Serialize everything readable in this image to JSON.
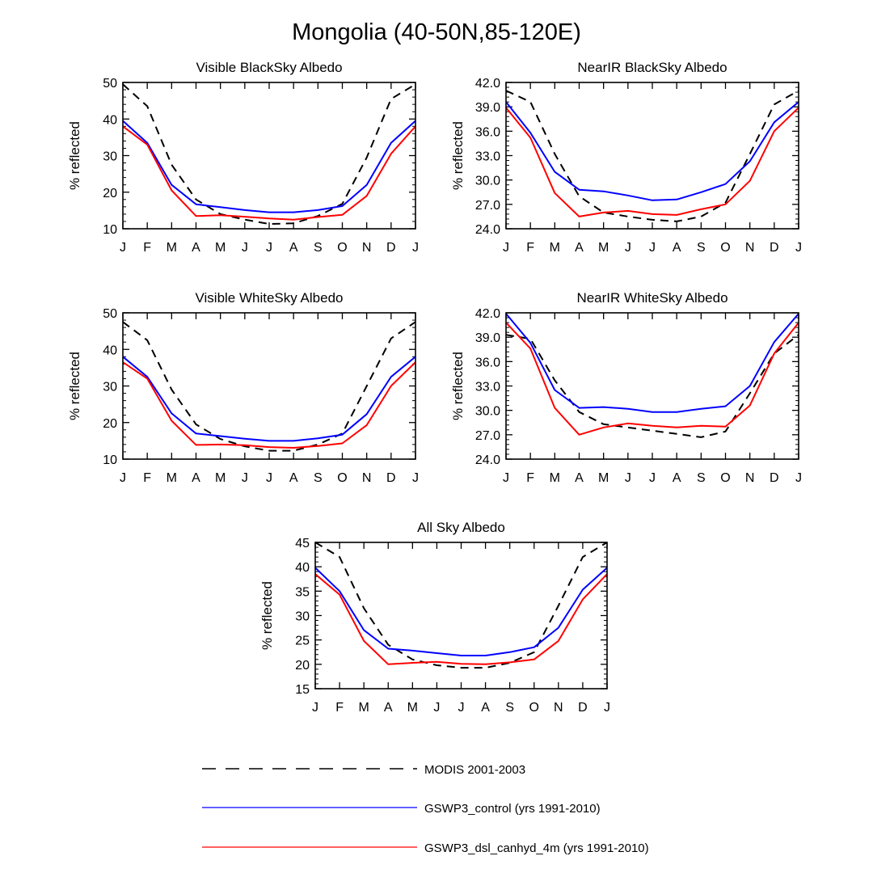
{
  "title": "Mongolia (40-50N,85-120E)",
  "colors": {
    "modis": "#000000",
    "control": "#0000ff",
    "canhyd": "#ff0000"
  },
  "legend": [
    {
      "label": "MODIS 2001-2003",
      "color": "#000000",
      "style": "dashed"
    },
    {
      "label": "GSWP3_control (yrs 1991-2010)",
      "color": "#0000ff",
      "style": "solid"
    },
    {
      "label": "GSWP3_dsl_canhyd_4m (yrs 1991-2010)",
      "color": "#ff0000",
      "style": "solid"
    }
  ],
  "chart_data": [
    {
      "type": "line",
      "title": "Visible BlackSky Albedo",
      "ylabel": "% reflected",
      "xlabel": "",
      "categories": [
        "J",
        "F",
        "M",
        "A",
        "M",
        "J",
        "J",
        "A",
        "S",
        "O",
        "N",
        "D",
        "J"
      ],
      "ylim": [
        10,
        50
      ],
      "yticks": [
        "10",
        "20",
        "30",
        "40",
        "50"
      ],
      "series": [
        {
          "name": "MODIS 2001-2003",
          "values": [
            49.5,
            43.5,
            27.5,
            18.0,
            14.0,
            12.5,
            11.3,
            11.5,
            13.5,
            16.8,
            29.5,
            45.5,
            49.5
          ]
        },
        {
          "name": "GSWP3_control (yrs 1991-2010)",
          "values": [
            39.5,
            33.5,
            22.0,
            16.7,
            15.9,
            15.1,
            14.5,
            14.5,
            15.1,
            16.2,
            22.0,
            33.5,
            39.5
          ]
        },
        {
          "name": "GSWP3_dsl_canhyd_4m (yrs 1991-2010)",
          "values": [
            38.0,
            33.0,
            20.5,
            13.5,
            13.7,
            13.3,
            12.8,
            12.5,
            13.2,
            13.8,
            19.0,
            30.5,
            38.0
          ]
        }
      ]
    },
    {
      "type": "line",
      "title": "NearIR BlackSky Albedo",
      "ylabel": "% reflected",
      "xlabel": "",
      "categories": [
        "J",
        "F",
        "M",
        "A",
        "M",
        "J",
        "J",
        "A",
        "S",
        "O",
        "N",
        "D",
        "J"
      ],
      "ylim": [
        24,
        42
      ],
      "yticks": [
        "24.0",
        "27.0",
        "30.0",
        "33.0",
        "36.0",
        "39.0",
        "42.0"
      ],
      "series": [
        {
          "name": "MODIS 2001-2003",
          "values": [
            41.0,
            39.6,
            33.2,
            28.0,
            26.0,
            25.5,
            25.1,
            24.9,
            25.5,
            27.2,
            33.2,
            39.3,
            41.0
          ]
        },
        {
          "name": "GSWP3_control (yrs 1991-2010)",
          "values": [
            39.6,
            35.8,
            31.0,
            28.8,
            28.6,
            28.1,
            27.5,
            27.6,
            28.5,
            29.5,
            32.3,
            37.1,
            39.6
          ]
        },
        {
          "name": "GSWP3_dsl_canhyd_4m (yrs 1991-2010)",
          "values": [
            38.9,
            35.2,
            28.4,
            25.5,
            26.0,
            26.2,
            25.8,
            25.7,
            26.4,
            27.0,
            29.9,
            36.0,
            38.9
          ]
        }
      ]
    },
    {
      "type": "line",
      "title": "Visible WhiteSky Albedo",
      "ylabel": "% reflected",
      "xlabel": "",
      "categories": [
        "J",
        "F",
        "M",
        "A",
        "M",
        "J",
        "J",
        "A",
        "S",
        "O",
        "N",
        "D",
        "J"
      ],
      "ylim": [
        10,
        50
      ],
      "yticks": [
        "10",
        "20",
        "30",
        "40",
        "50"
      ],
      "series": [
        {
          "name": "MODIS 2001-2003",
          "values": [
            47.5,
            42.5,
            29.0,
            19.5,
            15.5,
            13.5,
            12.3,
            12.3,
            14.0,
            17.0,
            30.0,
            43.0,
            47.5
          ]
        },
        {
          "name": "GSWP3_control (yrs 1991-2010)",
          "values": [
            38.0,
            32.5,
            22.5,
            17.0,
            16.3,
            15.6,
            15.0,
            15.0,
            15.7,
            16.7,
            22.3,
            32.5,
            38.0
          ]
        },
        {
          "name": "GSWP3_dsl_canhyd_4m (yrs 1991-2010)",
          "values": [
            36.5,
            32.0,
            20.5,
            13.9,
            14.0,
            13.8,
            13.3,
            13.1,
            13.6,
            14.3,
            19.3,
            30.0,
            36.5
          ]
        }
      ]
    },
    {
      "type": "line",
      "title": "NearIR WhiteSky Albedo",
      "ylabel": "% reflected",
      "xlabel": "",
      "categories": [
        "J",
        "F",
        "M",
        "A",
        "M",
        "J",
        "J",
        "A",
        "S",
        "O",
        "N",
        "D",
        "J"
      ],
      "ylim": [
        24,
        42
      ],
      "yticks": [
        "24.0",
        "27.0",
        "30.0",
        "33.0",
        "36.0",
        "39.0",
        "42.0"
      ],
      "series": [
        {
          "name": "MODIS 2001-2003",
          "values": [
            39.3,
            38.8,
            33.7,
            29.8,
            28.3,
            27.9,
            27.5,
            27.1,
            26.7,
            27.4,
            32.1,
            37.0,
            39.3
          ]
        },
        {
          "name": "GSWP3_control (yrs 1991-2010)",
          "values": [
            41.9,
            38.3,
            32.5,
            30.3,
            30.4,
            30.2,
            29.8,
            29.8,
            30.2,
            30.5,
            33.0,
            38.4,
            41.9
          ]
        },
        {
          "name": "GSWP3_dsl_canhyd_4m (yrs 1991-2010)",
          "values": [
            40.8,
            37.6,
            30.3,
            27.0,
            27.9,
            28.4,
            28.1,
            27.9,
            28.1,
            28.0,
            30.6,
            37.0,
            40.8
          ]
        }
      ]
    },
    {
      "type": "line",
      "title": "All Sky Albedo",
      "ylabel": "% reflected",
      "xlabel": "",
      "categories": [
        "J",
        "F",
        "M",
        "A",
        "M",
        "J",
        "J",
        "A",
        "S",
        "O",
        "N",
        "D",
        "J"
      ],
      "ylim": [
        15,
        45
      ],
      "yticks": [
        "15",
        "20",
        "25",
        "30",
        "35",
        "40",
        "45"
      ],
      "series": [
        {
          "name": "MODIS 2001-2003",
          "values": [
            45.0,
            42.0,
            31.5,
            24.0,
            21.0,
            19.8,
            19.3,
            19.3,
            20.3,
            22.5,
            32.0,
            42.0,
            45.0
          ]
        },
        {
          "name": "GSWP3_control (yrs 1991-2010)",
          "values": [
            39.8,
            35.0,
            27.0,
            23.2,
            22.8,
            22.3,
            21.8,
            21.8,
            22.5,
            23.5,
            27.5,
            35.3,
            39.8
          ]
        },
        {
          "name": "GSWP3_dsl_canhyd_4m (yrs 1991-2010)",
          "values": [
            38.5,
            34.3,
            24.8,
            20.0,
            20.3,
            20.5,
            20.1,
            20.0,
            20.4,
            21.0,
            24.8,
            33.3,
            38.5
          ]
        }
      ]
    }
  ]
}
